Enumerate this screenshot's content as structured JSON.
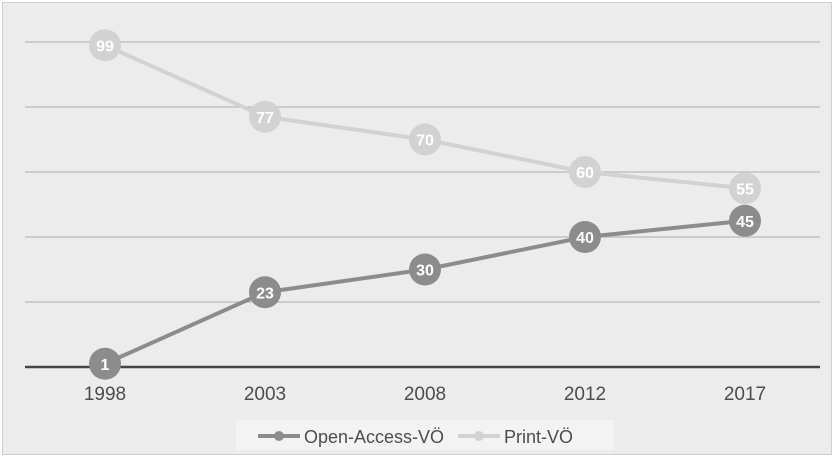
{
  "chart_data": {
    "type": "line",
    "title": "",
    "xlabel": "",
    "ylabel": "",
    "categories": [
      "1998",
      "2003",
      "2008",
      "2012",
      "2017"
    ],
    "ylim": [
      0,
      100
    ],
    "grid": true,
    "legend_position": "bottom",
    "series": [
      {
        "name": "Open-Access-VÖ",
        "values": [
          1,
          23,
          30,
          40,
          45
        ],
        "color": "#8c8c8c"
      },
      {
        "name": "Print-VÖ",
        "values": [
          99,
          77,
          70,
          60,
          55
        ],
        "color": "#d2d2d2"
      }
    ]
  },
  "colors": {
    "background": "#ececec",
    "gridline": "#b9b9b9",
    "axis": "#444444"
  }
}
